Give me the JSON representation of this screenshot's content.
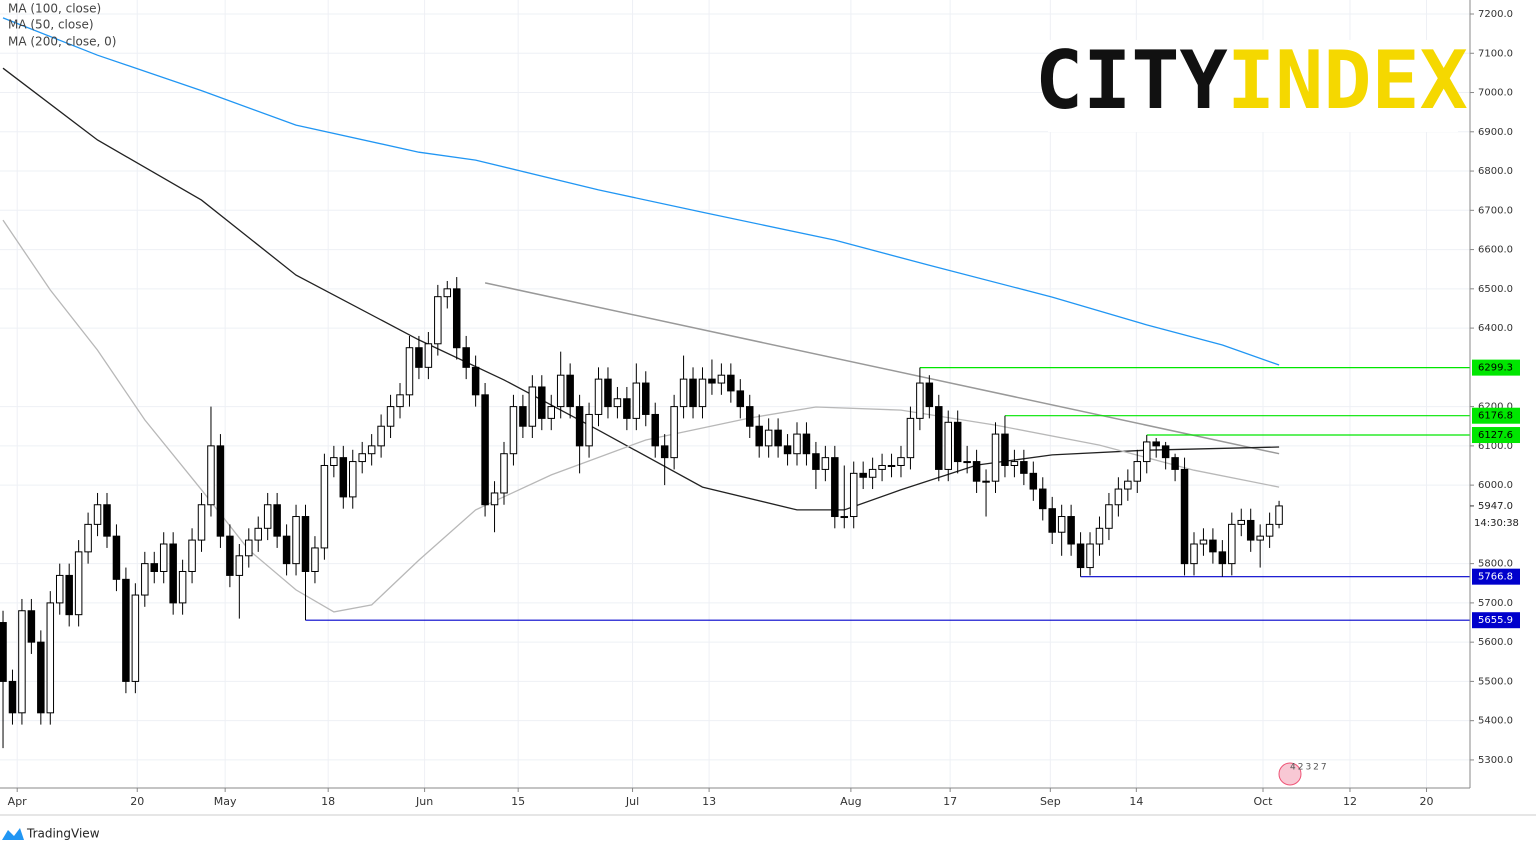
{
  "chart_data": {
    "type": "candlestick",
    "legend": [
      "MA (100, close)",
      "MA (50, close)",
      "MA (200, close, 0)"
    ],
    "up_color": "#ffffff",
    "down_color": "#000000",
    "border_color": "#000000",
    "open": [
      5650,
      5500,
      5420,
      5680,
      5600,
      5420,
      5700,
      5770,
      5670,
      5830,
      5900,
      5950,
      5870,
      5760,
      5500,
      5720,
      5800,
      5780,
      5850,
      5700,
      5780,
      5860,
      5950,
      6100,
      5870,
      5770,
      5820,
      5860,
      5890,
      5950,
      5870,
      5800,
      5920,
      5780,
      5840,
      6050,
      6070,
      5970,
      6060,
      6080,
      6100,
      6150,
      6200,
      6230,
      6350,
      6300,
      6360,
      6480,
      6500,
      6350,
      6300,
      6230,
      5950,
      5980,
      6080,
      6200,
      6150,
      6250,
      6170,
      6200,
      6280,
      6200,
      6100,
      6180,
      6270,
      6200,
      6220,
      6170,
      6260,
      6180,
      6100,
      6070,
      6200,
      6270,
      6200,
      6270,
      6260,
      6280,
      6240,
      6200,
      6150,
      6100,
      6140,
      6100,
      6080,
      6130,
      6080,
      6040,
      6070,
      5920,
      5920,
      6030,
      6020,
      6040,
      6050,
      6050,
      6070,
      6170,
      6260,
      6200,
      6040,
      6160,
      6060,
      6060,
      6010,
      6010,
      6130,
      6050,
      6060,
      6030,
      5990,
      5940,
      5880,
      5920,
      5850,
      5790,
      5850,
      5890,
      5950,
      5990,
      6010,
      6060,
      6110,
      6100,
      6070,
      6040,
      5800,
      5850,
      5860,
      5830,
      5800,
      5900,
      5910,
      5860,
      5870,
      5900
    ],
    "high": [
      5680,
      5530,
      5710,
      5710,
      5630,
      5730,
      5800,
      5800,
      5860,
      5930,
      5980,
      5980,
      5900,
      5790,
      5750,
      5830,
      5830,
      5880,
      5880,
      5810,
      5890,
      5980,
      6200,
      6130,
      5900,
      5850,
      5890,
      5920,
      5980,
      5980,
      5900,
      5950,
      5950,
      5870,
      6080,
      6100,
      6100,
      6090,
      6110,
      6130,
      6180,
      6230,
      6260,
      6380,
      6380,
      6390,
      6510,
      6520,
      6530,
      6380,
      6330,
      6260,
      6010,
      6110,
      6230,
      6230,
      6280,
      6280,
      6230,
      6340,
      6310,
      6230,
      6210,
      6300,
      6300,
      6250,
      6250,
      6310,
      6290,
      6210,
      6130,
      6230,
      6330,
      6300,
      6300,
      6320,
      6310,
      6310,
      6270,
      6230,
      6180,
      6170,
      6170,
      6130,
      6160,
      6160,
      6110,
      6100,
      6100,
      6050,
      6060,
      6060,
      6070,
      6080,
      6080,
      6100,
      6200,
      6299.3,
      6280,
      6230,
      6190,
      6190,
      6100,
      6090,
      6040,
      6160,
      6176.8,
      6090,
      6090,
      6060,
      6020,
      5970,
      5950,
      5950,
      5880,
      5880,
      5920,
      5980,
      6020,
      6040,
      6090,
      6127.6,
      6120,
      6110,
      6080,
      6070,
      5880,
      5890,
      5890,
      5860,
      5930,
      5940,
      5940,
      5900,
      5930,
      5960
    ],
    "low": [
      5330,
      5390,
      5390,
      5570,
      5390,
      5390,
      5670,
      5640,
      5640,
      5800,
      5870,
      5840,
      5730,
      5470,
      5470,
      5690,
      5750,
      5750,
      5670,
      5670,
      5750,
      5830,
      5920,
      5840,
      5740,
      5660,
      5790,
      5830,
      5860,
      5840,
      5770,
      5770,
      5655.9,
      5750,
      5810,
      6020,
      5940,
      5940,
      6030,
      6050,
      6070,
      6120,
      6170,
      6200,
      6270,
      6270,
      6330,
      6450,
      6320,
      6270,
      6200,
      5920,
      5880,
      5950,
      6050,
      6120,
      6120,
      6140,
      6140,
      6170,
      6170,
      6030,
      6070,
      6150,
      6170,
      6170,
      6140,
      6140,
      6150,
      6070,
      6000,
      6040,
      6170,
      6170,
      6170,
      6230,
      6230,
      6210,
      6170,
      6120,
      6070,
      6070,
      6070,
      6050,
      6050,
      6050,
      5990,
      6010,
      5890,
      5890,
      5890,
      5990,
      5990,
      6010,
      6020,
      6020,
      6040,
      6140,
      6170,
      6010,
      6010,
      6030,
      6030,
      5980,
      5920,
      5980,
      6020,
      6020,
      6000,
      5960,
      5910,
      5850,
      5820,
      5820,
      5766.8,
      5770,
      5820,
      5860,
      5920,
      5960,
      5980,
      6030,
      6070,
      6040,
      6010,
      5770,
      5770,
      5820,
      5800,
      5766.8,
      5770,
      5870,
      5830,
      5790,
      5840,
      5890
    ],
    "close": [
      5500,
      5420,
      5680,
      5600,
      5420,
      5700,
      5770,
      5670,
      5830,
      5900,
      5950,
      5870,
      5760,
      5500,
      5720,
      5800,
      5780,
      5850,
      5700,
      5780,
      5860,
      5950,
      6100,
      5870,
      5770,
      5820,
      5860,
      5890,
      5950,
      5870,
      5800,
      5920,
      5780,
      5840,
      6050,
      6070,
      5970,
      6060,
      6080,
      6100,
      6150,
      6200,
      6230,
      6350,
      6300,
      6360,
      6480,
      6500,
      6350,
      6300,
      6230,
      5950,
      5980,
      6080,
      6200,
      6150,
      6250,
      6170,
      6200,
      6280,
      6200,
      6100,
      6180,
      6270,
      6200,
      6220,
      6170,
      6260,
      6180,
      6100,
      6070,
      6200,
      6270,
      6200,
      6270,
      6260,
      6280,
      6240,
      6200,
      6150,
      6100,
      6140,
      6100,
      6080,
      6130,
      6080,
      6040,
      6070,
      5920,
      5920,
      6030,
      6020,
      6040,
      6050,
      6050,
      6070,
      6170,
      6260,
      6200,
      6040,
      6160,
      6060,
      6060,
      6010,
      6010,
      6130,
      6050,
      6060,
      6030,
      5990,
      5940,
      5880,
      5920,
      5850,
      5790,
      5850,
      5890,
      5950,
      5990,
      6010,
      6060,
      6110,
      6100,
      6070,
      6040,
      5800,
      5850,
      5860,
      5830,
      5800,
      5900,
      5910,
      5860,
      5870,
      5900,
      5947
    ],
    "lines": [
      {
        "name": "MA (100, close)",
        "color": "#222222",
        "x": [
          0,
          10,
          21,
          31,
          44,
          53,
          63,
          74,
          84,
          89,
          95,
          103,
          111,
          121,
          135
        ],
        "values": [
          7062,
          6879,
          6726,
          6535,
          6370,
          6268,
          6140,
          5995,
          5937,
          5937,
          5988,
          6051,
          6077,
          6089,
          6097
        ]
      },
      {
        "name": "MA (50, close)",
        "color": "#b8b8b8",
        "x": [
          0,
          5,
          10,
          15,
          21,
          26,
          31,
          35,
          39,
          44,
          50,
          58,
          68,
          79,
          86,
          95,
          105,
          116,
          126,
          135
        ],
        "values": [
          6675,
          6497,
          6344,
          6166,
          5988,
          5835,
          5733,
          5677,
          5695,
          5809,
          5937,
          6026,
          6115,
          6171,
          6199,
          6191,
          6153,
          6102,
          6038,
          5995
        ]
      },
      {
        "name": "MA (200, close, 0)",
        "color": "#2196f3",
        "x": [
          0,
          10,
          21,
          31,
          44,
          50,
          63,
          74,
          88,
          98,
          111,
          121,
          129,
          135
        ],
        "values": [
          7190,
          7095,
          7005,
          6917,
          6848,
          6828,
          6752,
          6695,
          6624,
          6560,
          6479,
          6408,
          6357,
          6306
        ]
      }
    ],
    "trendline": {
      "x": [
        51,
        135
      ],
      "values": [
        6515,
        6080
      ],
      "color": "#999999"
    },
    "levels": [
      {
        "value": 6299.3,
        "from": 97,
        "color": "#00e600"
      },
      {
        "value": 6176.8,
        "from": 106,
        "color": "#00e600"
      },
      {
        "value": 6127.6,
        "from": 121,
        "color": "#00e600"
      },
      {
        "value": 5766.8,
        "from": 114,
        "color": "#0000cc"
      },
      {
        "value": 5655.9,
        "from": 32,
        "color": "#0000cc"
      }
    ],
    "last_price": {
      "value": 5947,
      "label": "5947.0"
    },
    "countdown": "14:30:38",
    "xlim": [
      -0.32,
      155.2
    ],
    "ylim": [
      5228.5,
      7235.7
    ],
    "yticks": [
      {
        "value": 5300,
        "label": "5300.0"
      },
      {
        "value": 5400,
        "label": "5400.0"
      },
      {
        "value": 5500,
        "label": "5500.0"
      },
      {
        "value": 5600,
        "label": "5600.0"
      },
      {
        "value": 5700,
        "label": "5700.0"
      },
      {
        "value": 5800,
        "label": "5800.0"
      },
      {
        "value": 6000,
        "label": "6000.0"
      },
      {
        "value": 6100,
        "label": "6100.0"
      },
      {
        "value": 6200,
        "label": "6200.0"
      },
      {
        "value": 6400,
        "label": "6400.0"
      },
      {
        "value": 6500,
        "label": "6500.0"
      },
      {
        "value": 6600,
        "label": "6600.0"
      },
      {
        "value": 6700,
        "label": "6700.0"
      },
      {
        "value": 6800,
        "label": "6800.0"
      },
      {
        "value": 6900,
        "label": "6900.0"
      },
      {
        "value": 7000,
        "label": "7000.0"
      },
      {
        "value": 7100,
        "label": "7100.0"
      },
      {
        "value": 7200,
        "label": "7200.0"
      }
    ],
    "xticks": [
      {
        "value": 1.5,
        "label": "Apr"
      },
      {
        "value": 14.2,
        "label": "20"
      },
      {
        "value": 23.5,
        "label": "May"
      },
      {
        "value": 34.4,
        "label": "18"
      },
      {
        "value": 44.6,
        "label": "Jun"
      },
      {
        "value": 54.5,
        "label": "15"
      },
      {
        "value": 66.6,
        "label": "Jul"
      },
      {
        "value": 74.7,
        "label": "13"
      },
      {
        "value": 89.7,
        "label": "Aug"
      },
      {
        "value": 100.2,
        "label": "17"
      },
      {
        "value": 110.8,
        "label": "Sep"
      },
      {
        "value": 119.9,
        "label": "14"
      },
      {
        "value": 133.3,
        "label": "Oct"
      },
      {
        "value": 142.5,
        "label": "12"
      },
      {
        "value": 150.6,
        "label": "20"
      }
    ],
    "grid": true,
    "logo": [
      "CITY",
      "INDEX"
    ],
    "badge": "42327",
    "footer": "TradingView"
  }
}
